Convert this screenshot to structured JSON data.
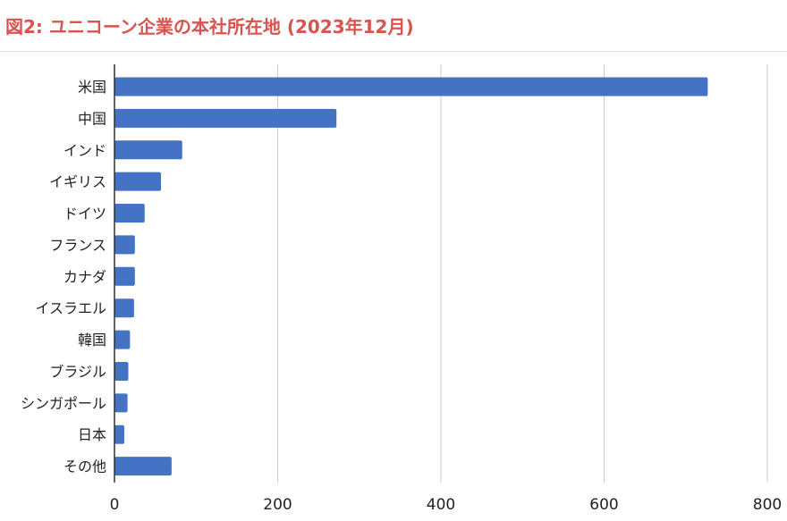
{
  "page": {
    "title": "図2: ユニコーン企業の本社所在地 (2023年12月)"
  },
  "chart_data": {
    "type": "bar",
    "orientation": "horizontal",
    "title": "図2: ユニコーン企業の本社所在地 (2023年12月)",
    "xlabel": "",
    "ylabel": "",
    "categories": [
      "米国",
      "中国",
      "インド",
      "イギリス",
      "ドイツ",
      "フランス",
      "カナダ",
      "イスラエル",
      "韓国",
      "ブラジル",
      "シンガポール",
      "日本",
      "その他"
    ],
    "values": [
      727,
      272,
      83,
      57,
      37,
      25,
      25,
      24,
      19,
      17,
      16,
      12,
      70
    ],
    "xlim": [
      0,
      800
    ],
    "xticks": [
      0,
      200,
      400,
      600,
      800
    ],
    "grid": "vertical",
    "bar_color": "#4472c4",
    "title_color": "#d9534f",
    "legend": "none"
  }
}
